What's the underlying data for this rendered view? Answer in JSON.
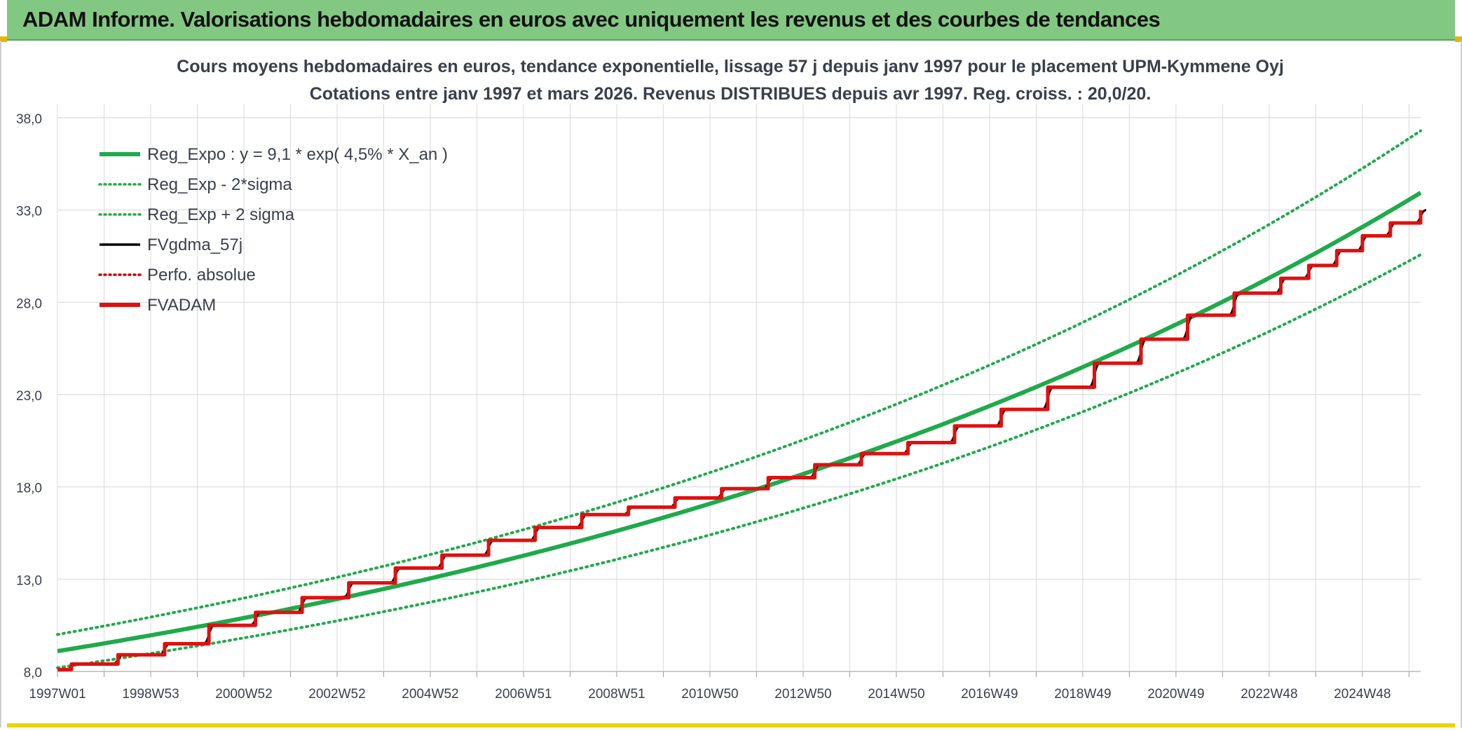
{
  "banner": {
    "title": "ADAM Informe. Valorisations hebdomadaires en euros avec uniquement les revenus et des courbes de tendances"
  },
  "colors": {
    "banner_bg": "#82c882",
    "reg_expo": "#1faa4b",
    "fvgdma": "#000000",
    "fvadam": "#e01010",
    "perfo": "#cc0000",
    "grid": "#d9d9d9",
    "text": "#3a3f4a"
  },
  "chart_data": {
    "type": "line",
    "title": "Cours moyens hebdomadaires en euros, tendance exponentielle, lissage 57 j depuis janv 1997 pour le placement UPM-Kymmene Oyj",
    "subtitle": "Cotations entre janv 1997 et mars 2026. Revenus DISTRIBUES depuis avr 1997. Reg. croiss. : 20,0/20.",
    "xlabel": "",
    "ylabel": "",
    "x_tick_labels": [
      "1997W01",
      "1998W53",
      "2000W52",
      "2002W52",
      "2004W52",
      "2006W51",
      "2008W51",
      "2010W50",
      "2012W50",
      "2014W50",
      "2016W49",
      "2018W49",
      "2020W49",
      "2022W48",
      "2024W48"
    ],
    "x_range_years": [
      1997.0,
      2026.25
    ],
    "ylim": [
      8.0,
      38.0
    ],
    "y_ticks": [
      8.0,
      13.0,
      18.0,
      23.0,
      28.0,
      33.0,
      38.0
    ],
    "y_tick_labels": [
      "8,0",
      "13,0",
      "18,0",
      "23,0",
      "28,0",
      "33,0",
      "38,0"
    ],
    "grid": true,
    "legend_position": "top-left",
    "legend": [
      {
        "name": "Reg_Expo : y = 9,1 * exp( 4,5% *  X_an )",
        "color": "#1faa4b",
        "style": "solid-thick"
      },
      {
        "name": "Reg_Exp - 2*sigma",
        "color": "#1faa4b",
        "style": "dotted"
      },
      {
        "name": "Reg_Exp + 2 sigma",
        "color": "#1faa4b",
        "style": "dotted"
      },
      {
        "name": "FVgdma_57j",
        "color": "#000000",
        "style": "solid"
      },
      {
        "name": "Perfo. absolue",
        "color": "#cc0000",
        "style": "dotted"
      },
      {
        "name": "FVADAM",
        "color": "#e01010",
        "style": "solid-thick"
      }
    ],
    "series": [
      {
        "name": "Reg_Expo : y = 9,1 * exp( 4,5% *  X_an )",
        "x": [
          1997.0,
          2000.0,
          2004.0,
          2008.0,
          2012.0,
          2016.0,
          2020.0,
          2024.0,
          2026.25
        ],
        "values": [
          9.1,
          10.4,
          12.4,
          14.9,
          17.8,
          21.3,
          25.5,
          30.5,
          33.6
        ]
      },
      {
        "name": "Reg_Exp - 2*sigma",
        "x": [
          1997.0,
          2000.0,
          2004.0,
          2008.0,
          2012.0,
          2016.0,
          2020.0,
          2024.0,
          2026.25
        ],
        "values": [
          8.2,
          9.4,
          11.2,
          13.4,
          16.0,
          19.1,
          22.9,
          27.4,
          30.3
        ]
      },
      {
        "name": "Reg_Exp + 2 sigma",
        "x": [
          1997.0,
          2000.0,
          2004.0,
          2008.0,
          2012.0,
          2016.0,
          2020.0,
          2024.0,
          2026.25
        ],
        "values": [
          10.0,
          11.5,
          13.7,
          16.4,
          19.6,
          23.5,
          28.1,
          33.6,
          37.0
        ]
      },
      {
        "name": "FVADAM",
        "step_years": [
          1997.0,
          1997.3,
          1998.3,
          1999.3,
          2000.25,
          2001.25,
          2002.25,
          2003.25,
          2004.25,
          2005.25,
          2006.25,
          2007.25,
          2008.25,
          2009.25,
          2010.25,
          2011.25,
          2012.25,
          2013.25,
          2014.25,
          2015.25,
          2016.25,
          2017.25,
          2018.25,
          2019.25,
          2020.25,
          2021.25,
          2022.25,
          2023.25,
          2023.85,
          2024.45,
          2025.0,
          2025.6,
          2026.25
        ],
        "step_values": [
          8.1,
          8.4,
          8.9,
          9.5,
          10.5,
          11.2,
          12.0,
          12.8,
          13.6,
          14.3,
          15.1,
          15.8,
          16.5,
          16.9,
          17.4,
          17.9,
          18.5,
          19.2,
          19.8,
          20.4,
          21.3,
          22.2,
          23.4,
          24.7,
          26.0,
          27.3,
          28.5,
          29.3,
          30.0,
          30.8,
          31.6,
          32.3,
          33.0
        ]
      },
      {
        "name": "FVgdma_57j",
        "note_source": "smoothed version of FVADAM steps"
      }
    ]
  }
}
